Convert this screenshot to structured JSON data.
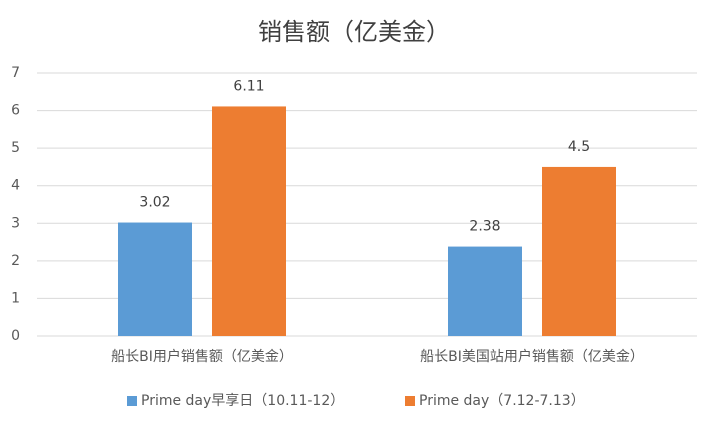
{
  "chart_data": {
    "type": "bar",
    "title": "销售额（亿美金）",
    "categories": [
      "船长BI用户销售额（亿美金）",
      "船长BI美国站用户销售额（亿美金）"
    ],
    "series": [
      {
        "name": "Prime day早享日（10.11-12）",
        "color": "#5b9bd5",
        "values": [
          3.02,
          2.38
        ]
      },
      {
        "name": "Prime day（7.12-7.13）",
        "color": "#ed7d31",
        "values": [
          6.11,
          4.5
        ]
      }
    ],
    "ylim": [
      0,
      7
    ],
    "yticks": [
      0,
      1,
      2,
      3,
      4,
      5,
      6,
      7
    ],
    "grid": true,
    "legend": "bottom"
  }
}
